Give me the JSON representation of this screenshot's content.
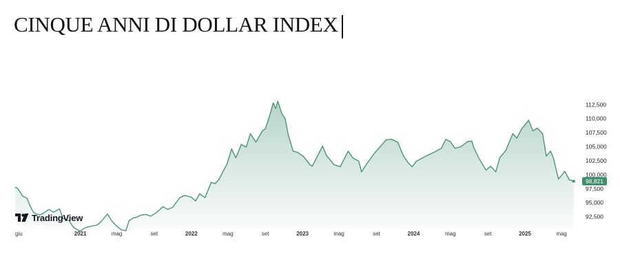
{
  "title": "CINQUE ANNI DI DOLLAR INDEX",
  "watermark": "TradingView",
  "colors": {
    "line": "#3f8f6e",
    "fill": "#3f8f6e",
    "badge": "#3f8f6e",
    "text": "#222222"
  },
  "chart_data": {
    "type": "area",
    "title": "CINQUE ANNI DI DOLLAR INDEX",
    "xlabel": "",
    "ylabel": "",
    "ylim": [
      90500,
      114000
    ],
    "yticks": [
      92500,
      95000,
      97500,
      100000,
      102500,
      105000,
      107500,
      110000,
      112500
    ],
    "ytick_labels": [
      "92,500",
      "95,000",
      "97,500",
      "100,000",
      "102,500",
      "105,000",
      "107,500",
      "110,000",
      "112,500"
    ],
    "xlim": [
      "2020-06-01",
      "2025-06-15"
    ],
    "xticks": [
      {
        "date": "2020-06-01",
        "label": "giu",
        "year": false
      },
      {
        "date": "2021-01-01",
        "label": "2021",
        "year": true
      },
      {
        "date": "2021-05-01",
        "label": "mag",
        "year": false
      },
      {
        "date": "2021-09-01",
        "label": "set",
        "year": false
      },
      {
        "date": "2022-01-01",
        "label": "2022",
        "year": true
      },
      {
        "date": "2022-05-01",
        "label": "mag",
        "year": false
      },
      {
        "date": "2022-09-01",
        "label": "set",
        "year": false
      },
      {
        "date": "2023-01-01",
        "label": "2023",
        "year": true
      },
      {
        "date": "2023-05-01",
        "label": "mag",
        "year": false
      },
      {
        "date": "2023-09-01",
        "label": "set",
        "year": false
      },
      {
        "date": "2024-01-01",
        "label": "2024",
        "year": true
      },
      {
        "date": "2024-05-01",
        "label": "mag",
        "year": false
      },
      {
        "date": "2024-09-01",
        "label": "set",
        "year": false
      },
      {
        "date": "2025-01-01",
        "label": "2025",
        "year": true
      },
      {
        "date": "2025-05-01",
        "label": "mag",
        "year": false
      }
    ],
    "last_value": 98821,
    "last_value_label": "98,821",
    "series": [
      {
        "x": [
          "2020-06-01",
          "2020-06-10",
          "2020-06-25",
          "2020-07-10",
          "2020-07-20",
          "2020-08-01",
          "2020-08-20",
          "2020-09-01",
          "2020-09-20",
          "2020-10-05",
          "2020-10-25",
          "2020-11-05",
          "2020-11-25",
          "2020-12-10",
          "2020-12-31",
          "2021-01-10",
          "2021-01-20",
          "2021-02-05",
          "2021-02-25",
          "2021-03-10",
          "2021-03-31",
          "2021-04-15",
          "2021-05-01",
          "2021-05-15",
          "2021-05-31",
          "2021-06-10",
          "2021-06-25",
          "2021-07-05",
          "2021-07-20",
          "2021-08-05",
          "2021-08-20",
          "2021-09-05",
          "2021-09-30",
          "2021-10-15",
          "2021-11-01",
          "2021-11-24",
          "2021-12-10",
          "2021-12-31",
          "2022-01-15",
          "2022-01-28",
          "2022-02-15",
          "2022-03-07",
          "2022-03-20",
          "2022-04-01",
          "2022-04-28",
          "2022-05-13",
          "2022-05-27",
          "2022-06-14",
          "2022-06-30",
          "2022-07-14",
          "2022-08-01",
          "2022-08-22",
          "2022-09-01",
          "2022-09-15",
          "2022-09-27",
          "2022-10-05",
          "2022-10-12",
          "2022-10-25",
          "2022-11-05",
          "2022-11-15",
          "2022-12-01",
          "2022-12-15",
          "2023-01-05",
          "2023-01-25",
          "2023-02-02",
          "2023-03-08",
          "2023-03-20",
          "2023-04-14",
          "2023-05-05",
          "2023-05-31",
          "2023-06-15",
          "2023-07-05",
          "2023-07-14",
          "2023-08-01",
          "2023-08-25",
          "2023-09-15",
          "2023-10-03",
          "2023-10-20",
          "2023-11-10",
          "2023-11-28",
          "2023-12-13",
          "2023-12-27",
          "2024-01-10",
          "2024-02-14",
          "2024-03-08",
          "2024-04-01",
          "2024-04-16",
          "2024-05-01",
          "2024-05-16",
          "2024-06-05",
          "2024-06-26",
          "2024-07-10",
          "2024-07-17",
          "2024-08-02",
          "2024-08-26",
          "2024-09-10",
          "2024-09-27",
          "2024-10-10",
          "2024-10-31",
          "2024-11-06",
          "2024-11-22",
          "2024-12-05",
          "2024-12-20",
          "2025-01-13",
          "2025-01-27",
          "2025-02-10",
          "2025-02-28",
          "2025-03-12",
          "2025-03-26",
          "2025-04-04",
          "2025-04-21",
          "2025-05-12",
          "2025-05-26",
          "2025-06-10"
        ],
        "values": [
          97800,
          97500,
          96200,
          95800,
          94400,
          93200,
          92800,
          93100,
          93800,
          93300,
          93900,
          92200,
          91800,
          90600,
          89900,
          90300,
          90600,
          90800,
          91000,
          91600,
          93000,
          91700,
          90800,
          90200,
          90000,
          91800,
          92300,
          92400,
          92800,
          92900,
          92600,
          93100,
          94300,
          93800,
          94200,
          95900,
          96300,
          96000,
          95300,
          96600,
          95900,
          98600,
          98400,
          99100,
          101900,
          104600,
          103000,
          105400,
          104900,
          107300,
          105800,
          107800,
          108200,
          110500,
          112800,
          111800,
          113100,
          110900,
          110000,
          107200,
          104200,
          104000,
          103200,
          101800,
          101500,
          105100,
          103500,
          101800,
          101400,
          104200,
          103000,
          102400,
          100500,
          102000,
          103800,
          105100,
          106200,
          106300,
          105800,
          103400,
          102200,
          101400,
          102400,
          103400,
          104000,
          104700,
          106300,
          105900,
          104700,
          105000,
          105900,
          106000,
          104800,
          103000,
          100800,
          101500,
          100500,
          103000,
          104400,
          105300,
          107300,
          106500,
          108100,
          109700,
          107800,
          108300,
          107300,
          103300,
          104200,
          103000,
          99200,
          100600,
          99100,
          98821
        ]
      }
    ]
  }
}
